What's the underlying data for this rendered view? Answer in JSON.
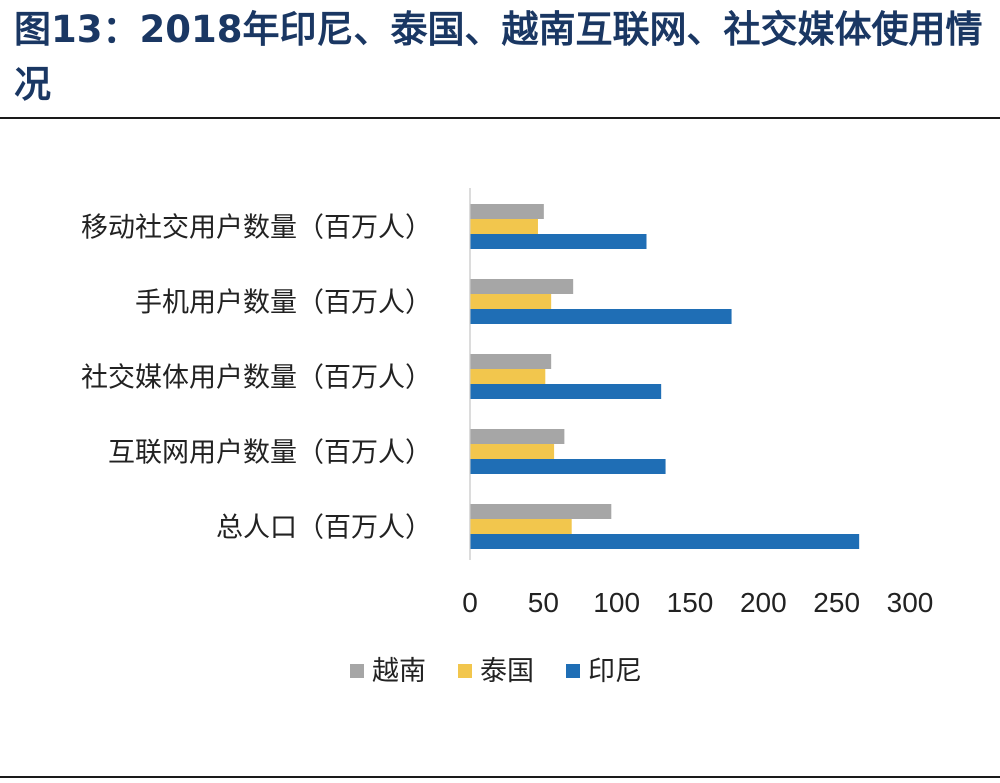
{
  "title": "图13：2018年印尼、泰国、越南互联网、社交媒体使用情况",
  "chart_data": {
    "type": "bar",
    "orientation": "horizontal",
    "categories": [
      "移动社交用户数量（百万人）",
      "手机用户数量（百万人）",
      "社交媒体用户数量（百万人）",
      "互联网用户数量（百万人）",
      "总人口（百万人）"
    ],
    "series": [
      {
        "name": "越南",
        "color": "#a6a6a6",
        "values": [
          50,
          70,
          55,
          64,
          96
        ]
      },
      {
        "name": "泰国",
        "color": "#f2c64d",
        "values": [
          46,
          55,
          51,
          57,
          69
        ]
      },
      {
        "name": "印尼",
        "color": "#1f6eb5",
        "values": [
          120,
          178,
          130,
          133,
          265
        ]
      }
    ],
    "xlim": [
      0,
      300
    ],
    "xticks": [
      "0",
      "50",
      "100",
      "150",
      "200",
      "250",
      "300"
    ],
    "grid": false,
    "legend_position": "bottom"
  }
}
